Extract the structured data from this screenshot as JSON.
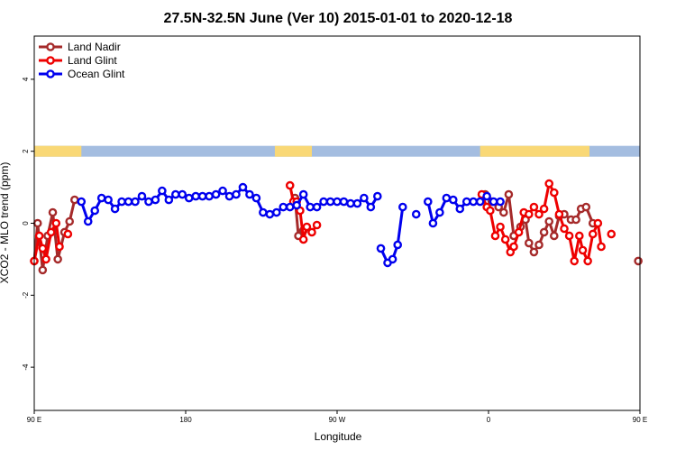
{
  "chart_data": {
    "type": "line",
    "title": "27.5N-32.5N June (Ver 10)   2015-01-01 to 2020-12-18",
    "xlabel": "Longitude",
    "ylabel": "XCO2 - MLO trend (ppm)",
    "xlim": [
      90,
      450
    ],
    "ylim": [
      -5.2,
      5.2
    ],
    "x_ticks": [
      {
        "value": 90,
        "label": "90 E"
      },
      {
        "value": 180,
        "label": "180"
      },
      {
        "value": 270,
        "label": "90 W"
      },
      {
        "value": 360,
        "label": "0"
      },
      {
        "value": 450,
        "label": "90 E"
      },
      {
        "value": 540,
        "label": "180"
      }
    ],
    "y_ticks": [
      {
        "value": -4,
        "label": "-4"
      },
      {
        "value": -2,
        "label": "-2"
      },
      {
        "value": 0,
        "label": "0"
      },
      {
        "value": 2,
        "label": "2"
      },
      {
        "value": 4,
        "label": "4"
      }
    ],
    "legend_position": "top-left",
    "land_ocean_strip": {
      "y": 2,
      "ocean_color": "#a4bde0",
      "land_color": "#f9d876",
      "land_ranges": [
        [
          90,
          118
        ],
        [
          233,
          255
        ],
        [
          355,
          420
        ],
        [
          521,
          540
        ]
      ]
    },
    "series": [
      {
        "name": "Land Nadir",
        "color": "#a52a2a",
        "segments": [
          [
            [
              90,
              -1.05
            ],
            [
              92,
              0.0
            ],
            [
              95,
              -1.3
            ],
            [
              98,
              -0.35
            ],
            [
              101,
              0.3
            ],
            [
              104,
              -1.0
            ],
            [
              108,
              -0.25
            ],
            [
              111,
              0.05
            ],
            [
              114,
              0.65
            ]
          ],
          [
            [
              245,
              0.7
            ],
            [
              247,
              -0.35
            ],
            [
              250,
              -0.2
            ]
          ],
          [
            [
              358,
              0.8
            ],
            [
              362,
              0.6
            ],
            [
              366,
              0.45
            ],
            [
              369,
              0.3
            ],
            [
              372,
              0.8
            ],
            [
              375,
              -0.35
            ],
            [
              379,
              -0.1
            ],
            [
              382,
              0.1
            ],
            [
              384,
              -0.55
            ],
            [
              387,
              -0.8
            ],
            [
              390,
              -0.6
            ],
            [
              393,
              -0.25
            ],
            [
              396,
              0.05
            ],
            [
              399,
              -0.35
            ],
            [
              402,
              0.2
            ],
            [
              405,
              0.25
            ],
            [
              409,
              0.1
            ],
            [
              412,
              0.1
            ],
            [
              415,
              0.4
            ],
            [
              418,
              0.45
            ],
            [
              422,
              0.0
            ]
          ],
          [
            [
              449,
              -1.05
            ],
            [
              451,
              -1.0
            ],
            [
              453,
              0.0
            ],
            [
              456,
              -1.3
            ],
            [
              459,
              -0.35
            ],
            [
              462,
              0.3
            ],
            [
              465,
              -1.0
            ],
            [
              468,
              -0.35
            ],
            [
              472,
              0.0
            ],
            [
              475,
              0.6
            ]
          ]
        ]
      },
      {
        "name": "Land Glint",
        "color": "#ee0000",
        "segments": [
          [
            [
              90,
              -1.05
            ],
            [
              93,
              -0.35
            ],
            [
              95,
              -0.7
            ],
            [
              97,
              -1.0
            ],
            [
              100,
              -0.25
            ],
            [
              103,
              0.0
            ],
            [
              105,
              -0.65
            ]
          ],
          [
            [
              110,
              -0.3
            ]
          ],
          [
            [
              242,
              1.05
            ],
            [
              244,
              0.6
            ],
            [
              246,
              0.6
            ],
            [
              248,
              0.35
            ],
            [
              250,
              -0.45
            ],
            [
              252,
              -0.1
            ],
            [
              255,
              -0.25
            ],
            [
              258,
              -0.05
            ]
          ],
          [
            [
              356,
              0.8
            ],
            [
              359,
              0.45
            ],
            [
              361,
              0.35
            ],
            [
              364,
              -0.35
            ],
            [
              367,
              -0.1
            ],
            [
              370,
              -0.45
            ],
            [
              373,
              -0.8
            ],
            [
              375,
              -0.65
            ],
            [
              378,
              -0.25
            ],
            [
              381,
              0.3
            ],
            [
              384,
              0.25
            ],
            [
              387,
              0.45
            ],
            [
              390,
              0.25
            ],
            [
              393,
              0.4
            ],
            [
              396,
              1.1
            ],
            [
              399,
              0.85
            ],
            [
              402,
              0.25
            ],
            [
              405,
              -0.15
            ],
            [
              408,
              -0.35
            ],
            [
              411,
              -1.05
            ],
            [
              414,
              -0.35
            ],
            [
              416,
              -0.75
            ],
            [
              419,
              -1.05
            ],
            [
              422,
              -0.3
            ],
            [
              425,
              0.0
            ],
            [
              427,
              -0.65
            ]
          ],
          [
            [
              433,
              -0.3
            ]
          ]
        ]
      },
      {
        "name": "Ocean Glint",
        "color": "#0000ee",
        "segments": [
          [
            [
              118,
              0.6
            ],
            [
              122,
              0.05
            ],
            [
              126,
              0.35
            ],
            [
              130,
              0.7
            ],
            [
              134,
              0.65
            ],
            [
              138,
              0.4
            ],
            [
              142,
              0.6
            ],
            [
              146,
              0.6
            ],
            [
              150,
              0.6
            ],
            [
              154,
              0.75
            ],
            [
              158,
              0.6
            ],
            [
              162,
              0.65
            ],
            [
              166,
              0.9
            ],
            [
              170,
              0.65
            ],
            [
              174,
              0.8
            ],
            [
              178,
              0.8
            ],
            [
              182,
              0.7
            ],
            [
              186,
              0.75
            ],
            [
              190,
              0.75
            ],
            [
              194,
              0.75
            ],
            [
              198,
              0.8
            ],
            [
              202,
              0.9
            ],
            [
              206,
              0.75
            ],
            [
              210,
              0.8
            ],
            [
              214,
              1.0
            ],
            [
              218,
              0.8
            ],
            [
              222,
              0.7
            ],
            [
              226,
              0.3
            ],
            [
              230,
              0.25
            ],
            [
              234,
              0.3
            ],
            [
              238,
              0.45
            ],
            [
              242,
              0.45
            ],
            [
              246,
              0.5
            ],
            [
              250,
              0.8
            ],
            [
              254,
              0.45
            ],
            [
              258,
              0.45
            ],
            [
              262,
              0.6
            ],
            [
              266,
              0.6
            ],
            [
              270,
              0.6
            ],
            [
              274,
              0.6
            ],
            [
              278,
              0.55
            ],
            [
              282,
              0.55
            ],
            [
              286,
              0.7
            ],
            [
              290,
              0.45
            ],
            [
              294,
              0.75
            ]
          ],
          [
            [
              296,
              -0.7
            ],
            [
              300,
              -1.1
            ],
            [
              303,
              -1.0
            ],
            [
              306,
              -0.6
            ],
            [
              309,
              0.45
            ]
          ],
          [
            [
              317,
              0.25
            ]
          ],
          [
            [
              324,
              0.6
            ],
            [
              327,
              0.0
            ],
            [
              331,
              0.3
            ],
            [
              335,
              0.7
            ],
            [
              339,
              0.65
            ],
            [
              343,
              0.4
            ],
            [
              347,
              0.6
            ],
            [
              351,
              0.6
            ],
            [
              355,
              0.6
            ],
            [
              359,
              0.75
            ],
            [
              363,
              0.6
            ],
            [
              367,
              0.6
            ]
          ]
        ]
      }
    ]
  }
}
